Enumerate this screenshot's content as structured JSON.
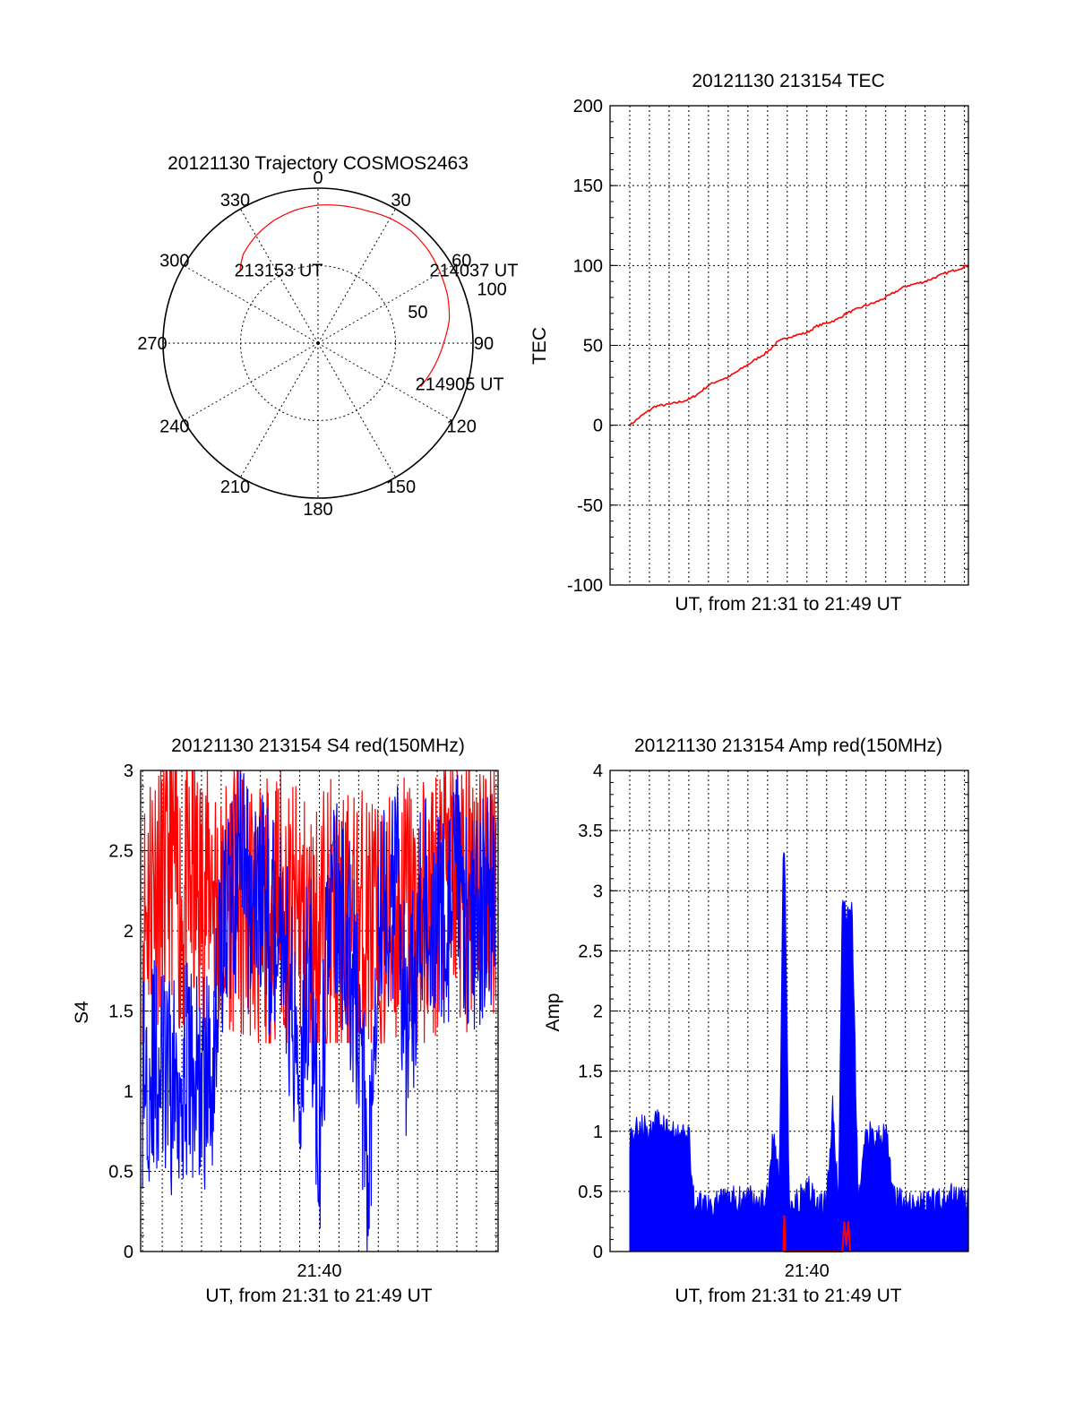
{
  "colors": {
    "red": "#ff0000",
    "blue": "#0000ff",
    "axis": "#000000",
    "background": "#ffffff"
  },
  "chart_data": [
    {
      "type": "polar",
      "title": "20121130 Trajectory COSMOS2463",
      "angle_tick_labels": [
        "0",
        "30",
        "60",
        "90",
        "120",
        "150",
        "180",
        "210",
        "240",
        "270",
        "300",
        "330"
      ],
      "angle_ticks_deg": [
        0,
        30,
        60,
        90,
        120,
        150,
        180,
        210,
        240,
        270,
        300,
        330
      ],
      "radius_labels": [
        "50",
        "100"
      ],
      "radius_ticks": [
        50,
        100
      ],
      "rlim": [
        0,
        100
      ],
      "grid": true,
      "trajectory": {
        "color": "red",
        "azimuth_deg": [
          312,
          320,
          330,
          340,
          350,
          0,
          10,
          20,
          30,
          40,
          50,
          60,
          70,
          80,
          90,
          100,
          110,
          113
        ],
        "radius": [
          68,
          75,
          80,
          84,
          87,
          89,
          90,
          91,
          93,
          94,
          93,
          91,
          89,
          86,
          81,
          77,
          73,
          72
        ]
      },
      "annotations": [
        {
          "text": "213153 UT",
          "azimuth_deg": 312,
          "radius": 68
        },
        {
          "text": "214037 UT",
          "azimuth_deg": 59,
          "radius": 88
        },
        {
          "text": "214905 UT",
          "azimuth_deg": 113,
          "radius": 72
        }
      ]
    },
    {
      "type": "line",
      "title": "20121130 213154 TEC",
      "xlabel": "UT, from 21:31 to 21:49 UT",
      "ylabel": "TEC",
      "ylim": [
        -100,
        200
      ],
      "yticks": [
        -100,
        -50,
        0,
        50,
        100,
        150,
        200
      ],
      "ytick_labels": [
        "-100",
        "-50",
        "0",
        "50",
        "100",
        "150",
        "200"
      ],
      "xlim_min": [
        -1,
        17.2
      ],
      "grid": true,
      "series": [
        {
          "color": "red",
          "x": [
            0,
            0.5,
            1.3,
            2,
            3,
            3.5,
            4,
            4.5,
            5,
            6,
            6.5,
            7,
            7.5,
            8,
            9,
            9.5,
            10,
            10.5,
            11,
            12,
            12.5,
            13,
            14,
            15,
            16,
            17.2
          ],
          "y": [
            0,
            5,
            12,
            13,
            16,
            20,
            25,
            28,
            30,
            38,
            42,
            46,
            52,
            55,
            58,
            62,
            64,
            66,
            70,
            75,
            77,
            80,
            87,
            90,
            95,
            100
          ]
        }
      ]
    },
    {
      "type": "line",
      "title": "20121130 213154 S4 red(150MHz)",
      "xlabel": "UT, from 21:31 to 21:49 UT",
      "ylabel": "S4",
      "xtick_labels": [
        "21:40"
      ],
      "xticks_min": [
        9
      ],
      "xlim_min": [
        -0.1,
        18.1
      ],
      "ylim": [
        0,
        3
      ],
      "yticks": [
        0,
        0.5,
        1,
        1.5,
        2,
        2.5,
        3
      ],
      "ytick_labels": [
        "0",
        "0.5",
        "1",
        "1.5",
        "2",
        "2.5",
        "3"
      ],
      "grid": true,
      "series": [
        {
          "color": "red",
          "x": [
            0,
            0.5,
            1,
            1.5,
            2,
            2.5,
            3,
            3.5,
            4,
            4.5,
            5,
            5.5,
            6,
            6.5,
            7,
            7.5,
            8,
            8.5,
            9,
            9.5,
            10,
            10.5,
            11,
            11.5,
            12,
            12.5,
            13,
            13.5,
            14,
            14.5,
            15,
            15.5,
            16,
            16.5,
            17,
            17.5,
            18
          ],
          "y": [
            2.0,
            2.4,
            2.2,
            2.5,
            2.1,
            2.3,
            2.2,
            2.4,
            2.0,
            2.3,
            2.1,
            2.2,
            2.0,
            2.1,
            2.2,
            2.0,
            2.1,
            1.9,
            2.0,
            2.1,
            1.9,
            2.0,
            2.0,
            2.1,
            1.9,
            2.0,
            2.1,
            2.2,
            2.0,
            2.1,
            2.2,
            2.4,
            2.3,
            2.2,
            2.5,
            2.3,
            2.4
          ]
        },
        {
          "color": "blue",
          "x": [
            0,
            0.5,
            1,
            1.5,
            2,
            2.5,
            3,
            3.5,
            4,
            4.5,
            5,
            5.5,
            6,
            6.5,
            7,
            7.5,
            8,
            8.5,
            9,
            9.5,
            10,
            10.5,
            11,
            11.5,
            12,
            12.5,
            13,
            13.5,
            14,
            14.5,
            15,
            15.5,
            16,
            16.5,
            17,
            17.5,
            18
          ],
          "y": [
            1.1,
            1.15,
            1.1,
            1.0,
            1.15,
            1.1,
            1.05,
            1.1,
            2.0,
            2.2,
            2.4,
            2.1,
            2.3,
            2.0,
            2.2,
            1.6,
            1.2,
            1.9,
            0.45,
            2.3,
            2.1,
            1.9,
            1.4,
            0.45,
            2.2,
            2.1,
            2.3,
            1.15,
            2.0,
            2.2,
            2.1,
            2.0,
            2.3,
            2.1,
            2.0,
            2.2,
            2.1
          ]
        }
      ]
    },
    {
      "type": "area",
      "title": "20121130 213154 Amp red(150MHz)",
      "xlabel": "UT, from 21:31 to 21:49 UT",
      "ylabel": "Amp",
      "xtick_labels": [
        "21:40"
      ],
      "xticks_min": [
        9
      ],
      "xlim_min": [
        -1,
        17.2
      ],
      "ylim": [
        0,
        4
      ],
      "yticks": [
        0,
        0.5,
        1,
        1.5,
        2,
        2.5,
        3,
        3.5,
        4
      ],
      "ytick_labels": [
        "0",
        "0.5",
        "1",
        "1.5",
        "2",
        "2.5",
        "3",
        "3.5",
        "4"
      ],
      "grid": true,
      "series": [
        {
          "color": "blue",
          "x": [
            0,
            0.5,
            1,
            1.5,
            2,
            2.5,
            3,
            3.2,
            3.5,
            4,
            5,
            6,
            7,
            7.3,
            7.6,
            7.8,
            7.9,
            8.1,
            8.5,
            9,
            9.5,
            10,
            10.3,
            10.6,
            10.8,
            11,
            11.3,
            11.6,
            12,
            12.5,
            13,
            13.4,
            14,
            15,
            16,
            17.2
          ],
          "y": [
            0.95,
            1.05,
            1.0,
            1.1,
            1.0,
            0.95,
            1.0,
            0.45,
            0.4,
            0.4,
            0.42,
            0.45,
            0.45,
            1.0,
            0.6,
            3.45,
            3.0,
            0.4,
            0.4,
            0.6,
            0.35,
            0.4,
            1.2,
            0.4,
            2.9,
            2.8,
            2.8,
            0.4,
            1.0,
            0.95,
            1.0,
            0.45,
            0.4,
            0.4,
            0.45,
            0.45
          ]
        },
        {
          "color": "red",
          "x": [
            7.8,
            7.85,
            7.9,
            10.8,
            10.9,
            11.0,
            11.1,
            11.2
          ],
          "y": [
            0,
            0.3,
            0,
            0,
            0.25,
            0.05,
            0.25,
            0
          ]
        }
      ]
    }
  ]
}
